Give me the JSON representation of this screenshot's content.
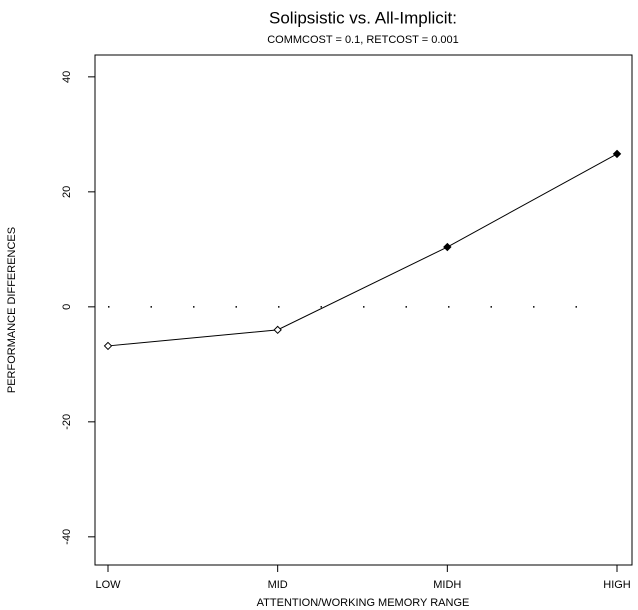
{
  "chart_data": {
    "type": "line",
    "title": "Solipsistic vs. All-Implicit:",
    "subtitle": "COMMCOST = 0.1, RETCOST = 0.001",
    "x_label": "ATTENTION/WORKING MEMORY RANGE",
    "y_label": "PERFORMANCE DIFFERENCES",
    "categories": [
      "LOW",
      "MID",
      "MIDH",
      "HIGH"
    ],
    "values": [
      -6.8,
      -4.0,
      10.4,
      26.6
    ],
    "marker_filled": [
      false,
      false,
      true,
      true
    ],
    "color": "#000000",
    "ylim": [
      -44.9,
      43.8
    ],
    "yticks": [
      -40,
      -20,
      0,
      20,
      40
    ],
    "reference_line": 0
  }
}
